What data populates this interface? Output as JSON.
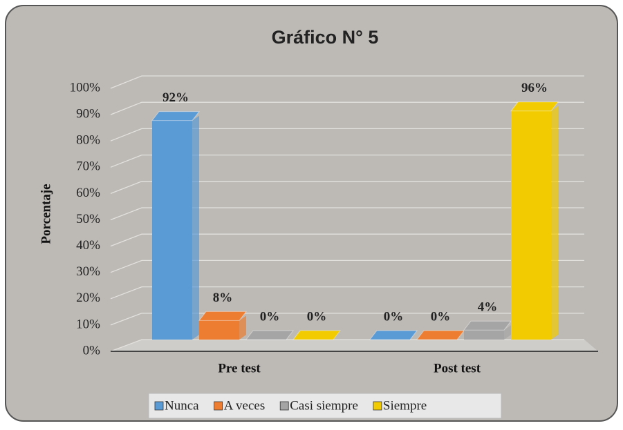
{
  "chart_data": {
    "type": "bar3d",
    "title": "Gráfico N° 5",
    "y_label": "Porcentaje",
    "categories": [
      "Pre test",
      "Post test"
    ],
    "series": [
      {
        "name": "Nunca",
        "color": "#5b9bd5",
        "values": [
          92,
          0
        ],
        "value_labels": [
          "92%",
          "0%"
        ]
      },
      {
        "name": "A veces",
        "color": "#ed7d31",
        "values": [
          8,
          0
        ],
        "value_labels": [
          "8%",
          "0%"
        ]
      },
      {
        "name": "Casi siempre",
        "color": "#a5a5a5",
        "values": [
          0,
          4
        ],
        "value_labels": [
          "0%",
          "4%"
        ]
      },
      {
        "name": "Siempre",
        "color": "#f2cc00",
        "values": [
          0,
          96
        ],
        "value_labels": [
          "0%",
          "96%"
        ]
      }
    ],
    "ylim": [
      0,
      100
    ],
    "yticks": [
      {
        "value": 0,
        "label": "0%"
      },
      {
        "value": 10,
        "label": "10%"
      },
      {
        "value": 20,
        "label": "20%"
      },
      {
        "value": 30,
        "label": "30%"
      },
      {
        "value": 40,
        "label": "40%"
      },
      {
        "value": 50,
        "label": "50%"
      },
      {
        "value": 60,
        "label": "60%"
      },
      {
        "value": 70,
        "label": "70%"
      },
      {
        "value": 80,
        "label": "80%"
      },
      {
        "value": 90,
        "label": "90%"
      },
      {
        "value": 100,
        "label": "100%"
      }
    ],
    "grid": true,
    "legend": "bottom"
  }
}
